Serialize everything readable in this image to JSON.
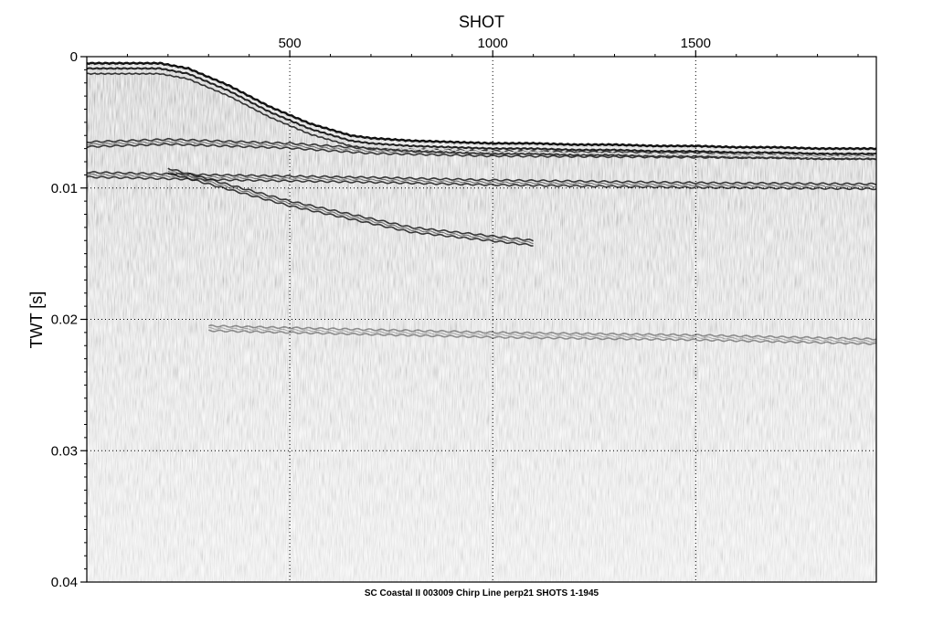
{
  "chart_data": {
    "type": "heatmap",
    "subtype": "seismic-chirp-profile",
    "colormap": "grayscale",
    "xlabel": "SHOT",
    "ylabel": "TWT [s]",
    "caption": "SC Coastal II 003009 Chirp Line perp21 SHOTS 1-1945",
    "xlim": [
      0,
      1945
    ],
    "ylim": [
      0.04,
      0
    ],
    "x_ticks": [
      {
        "value": 500,
        "label": "500"
      },
      {
        "value": 1000,
        "label": "1000"
      },
      {
        "value": 1500,
        "label": "1500"
      }
    ],
    "y_ticks": [
      {
        "value": 0,
        "label": "0"
      },
      {
        "value": 0.01,
        "label": "0.01"
      },
      {
        "value": 0.02,
        "label": "0.02"
      },
      {
        "value": 0.03,
        "label": "0.03"
      },
      {
        "value": 0.04,
        "label": "0.04"
      }
    ],
    "grid": "dotted",
    "seafloor_reflector": {
      "shot": [
        0,
        100,
        180,
        250,
        350,
        450,
        550,
        650,
        700,
        800,
        900,
        1000,
        1100,
        1200,
        1300,
        1400,
        1500,
        1600,
        1700,
        1800,
        1945
      ],
      "twt": [
        0.0005,
        0.0005,
        0.0005,
        0.0009,
        0.0022,
        0.0038,
        0.0051,
        0.006,
        0.0062,
        0.0064,
        0.0065,
        0.0066,
        0.0066,
        0.0067,
        0.0067,
        0.0068,
        0.0068,
        0.0069,
        0.0069,
        0.007,
        0.007
      ]
    },
    "subbottom_reflectors": [
      {
        "shot": [
          0,
          200,
          500,
          700,
          1000,
          1500,
          1945
        ],
        "twt": [
          0.0065,
          0.0063,
          0.0066,
          0.007,
          0.0072,
          0.0073,
          0.0074
        ]
      },
      {
        "shot": [
          0,
          300,
          700,
          1000,
          1500,
          1945
        ],
        "twt": [
          0.0088,
          0.009,
          0.0092,
          0.0094,
          0.0096,
          0.0097
        ]
      },
      {
        "shot": [
          200,
          500,
          800,
          1100
        ],
        "twt": [
          0.0085,
          0.011,
          0.013,
          0.014
        ]
      },
      {
        "shot": [
          300,
          1000,
          1500,
          1945
        ],
        "twt": [
          0.0205,
          0.021,
          0.0212,
          0.0215
        ]
      }
    ]
  }
}
